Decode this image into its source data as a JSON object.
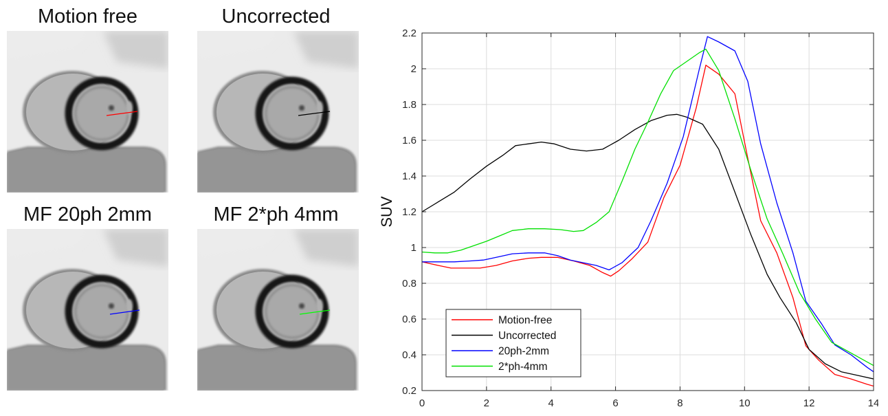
{
  "panels": [
    {
      "title": "Motion free",
      "line_color": "#ff0000",
      "line": [
        155,
        168,
        200,
        162
      ]
    },
    {
      "title": "Uncorrected",
      "line_color": "#000000",
      "line": [
        434,
        168,
        480,
        162
      ]
    },
    {
      "title": "MF 20ph 2mm",
      "line_color": "#0000ff",
      "line": [
        160,
        457,
        203,
        451
      ]
    },
    {
      "title": "MF 2*ph 4mm",
      "line_color": "#00ff00",
      "line": [
        436,
        457,
        480,
        451
      ]
    }
  ],
  "chart_data": {
    "type": "line",
    "xlabel": "",
    "ylabel": "SUV",
    "xlim": [
      0,
      14
    ],
    "ylim": [
      0.2,
      2.2
    ],
    "xticks": [
      0,
      2,
      4,
      6,
      8,
      10,
      12,
      14
    ],
    "yticks": [
      0.2,
      0.4,
      0.6,
      0.8,
      1,
      1.2,
      1.4,
      1.6,
      1.8,
      2,
      2.2
    ],
    "xtick_labels": [
      "0",
      "2",
      "4",
      "6",
      "8",
      "10",
      "12",
      "14"
    ],
    "ytick_labels": [
      "0.2",
      "0.4",
      "0.6",
      "0.8",
      "1",
      "1.2",
      "1.4",
      "1.6",
      "1.8",
      "2",
      "2.2"
    ],
    "grid": true,
    "legend_position": "bottom-left",
    "series": [
      {
        "name": "Motion-free",
        "color": "#ff0000",
        "x": [
          0,
          0.5,
          0.9,
          1.4,
          1.8,
          2.3,
          2.8,
          3.3,
          3.7,
          4.2,
          4.7,
          5.2,
          5.6,
          5.85,
          6.1,
          6.5,
          7.0,
          7.5,
          8.0,
          8.5,
          8.8,
          9.2,
          9.7,
          10.1,
          10.5,
          11.0,
          11.5,
          11.9,
          12.3,
          12.8,
          13.3,
          13.8,
          14
        ],
        "y": [
          0.92,
          0.9,
          0.885,
          0.885,
          0.885,
          0.9,
          0.925,
          0.94,
          0.945,
          0.945,
          0.925,
          0.9,
          0.86,
          0.84,
          0.87,
          0.935,
          1.03,
          1.28,
          1.46,
          1.78,
          2.02,
          1.97,
          1.86,
          1.5,
          1.15,
          0.97,
          0.72,
          0.45,
          0.37,
          0.29,
          0.265,
          0.235,
          0.225
        ]
      },
      {
        "name": "Uncorrected",
        "color": "#000000",
        "x": [
          0,
          0.5,
          1.0,
          1.5,
          2.0,
          2.5,
          2.9,
          3.3,
          3.7,
          4.1,
          4.6,
          5.1,
          5.6,
          6.1,
          6.6,
          7.1,
          7.6,
          7.9,
          8.2,
          8.7,
          9.2,
          9.7,
          10.2,
          10.7,
          11.1,
          11.6,
          12.0,
          12.5,
          13.0,
          13.5,
          14
        ],
        "y": [
          1.2,
          1.255,
          1.31,
          1.385,
          1.455,
          1.515,
          1.57,
          1.58,
          1.59,
          1.58,
          1.55,
          1.54,
          1.55,
          1.6,
          1.66,
          1.71,
          1.74,
          1.745,
          1.73,
          1.69,
          1.55,
          1.31,
          1.07,
          0.85,
          0.72,
          0.58,
          0.43,
          0.35,
          0.305,
          0.285,
          0.265
        ]
      },
      {
        "name": "20ph-2mm",
        "color": "#0000ff",
        "x": [
          0,
          0.5,
          1.0,
          1.5,
          1.9,
          2.3,
          2.8,
          3.3,
          3.8,
          4.2,
          4.6,
          5.0,
          5.4,
          5.8,
          6.2,
          6.7,
          7.1,
          7.6,
          8.1,
          8.6,
          8.85,
          9.2,
          9.7,
          10.1,
          10.5,
          11.0,
          11.5,
          11.9,
          12.4,
          12.8,
          13.3,
          13.8,
          14
        ],
        "y": [
          0.92,
          0.92,
          0.92,
          0.925,
          0.93,
          0.945,
          0.965,
          0.97,
          0.97,
          0.955,
          0.93,
          0.915,
          0.9,
          0.875,
          0.915,
          1.0,
          1.15,
          1.36,
          1.62,
          2.0,
          2.18,
          2.15,
          2.1,
          1.93,
          1.58,
          1.25,
          0.97,
          0.7,
          0.57,
          0.455,
          0.4,
          0.33,
          0.305
        ]
      },
      {
        "name": "2*ph-4mm",
        "color": "#00e000",
        "x": [
          0,
          0.4,
          0.8,
          1.2,
          1.6,
          2.0,
          2.4,
          2.8,
          3.3,
          3.8,
          4.3,
          4.7,
          5.0,
          5.4,
          5.8,
          6.2,
          6.6,
          7.0,
          7.4,
          7.8,
          8.2,
          8.6,
          8.8,
          9.2,
          9.7,
          10.2,
          10.7,
          11.2,
          11.7,
          12.2,
          12.7,
          13.2,
          13.7,
          14
        ],
        "y": [
          0.975,
          0.97,
          0.97,
          0.985,
          1.01,
          1.035,
          1.065,
          1.095,
          1.105,
          1.105,
          1.1,
          1.09,
          1.095,
          1.14,
          1.2,
          1.37,
          1.55,
          1.7,
          1.86,
          1.99,
          2.04,
          2.09,
          2.11,
          1.99,
          1.72,
          1.43,
          1.16,
          0.96,
          0.75,
          0.6,
          0.47,
          0.42,
          0.37,
          0.34
        ]
      }
    ]
  }
}
